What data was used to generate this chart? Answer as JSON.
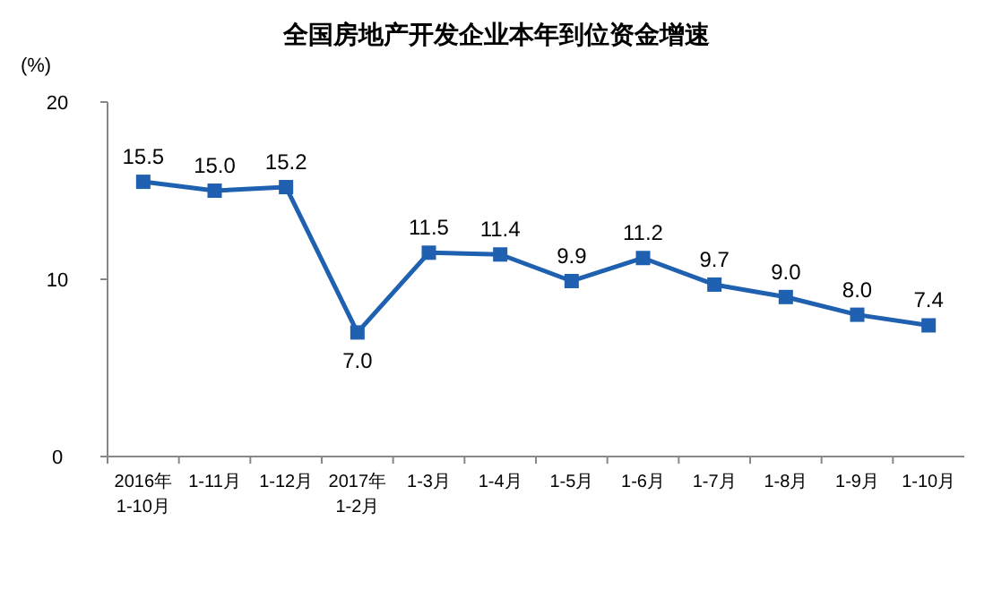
{
  "chart_data": {
    "type": "line",
    "title": "全国房地产开发企业本年到位资金增速",
    "ylabel": "(%)",
    "categories": [
      "2016年\n1-10月",
      "1-11月",
      "1-12月",
      "2017年\n1-2月",
      "1-3月",
      "1-4月",
      "1-5月",
      "1-6月",
      "1-7月",
      "1-8月",
      "1-9月",
      "1-10月"
    ],
    "series": [
      {
        "color": "#1f60b0",
        "values": [
          15.5,
          15.0,
          15.2,
          7.0,
          11.5,
          11.4,
          9.9,
          11.2,
          9.7,
          9.0,
          8.0,
          7.4
        ],
        "value_labels": [
          "15.5",
          "15.0",
          "15.2",
          "7.0",
          "11.5",
          "11.4",
          "9.9",
          "11.2",
          "9.7",
          "9.0",
          "8.0",
          "7.4"
        ]
      }
    ],
    "ylim": [
      0,
      20
    ],
    "yticks": [
      0,
      10,
      20
    ],
    "marker": "square",
    "line_style": "solid"
  }
}
